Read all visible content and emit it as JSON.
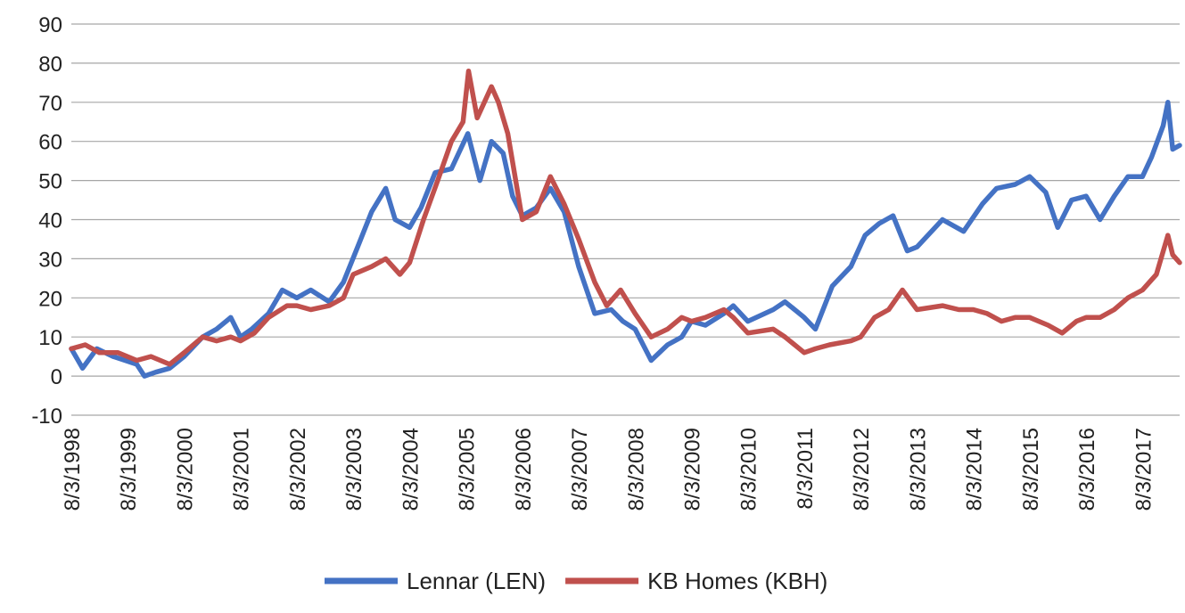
{
  "chart_data": {
    "type": "line",
    "title": "",
    "xlabel": "",
    "ylabel": "",
    "ylim": [
      -10,
      90
    ],
    "yticks": [
      -10,
      0,
      10,
      20,
      30,
      40,
      50,
      60,
      70,
      80,
      90
    ],
    "xlim": [
      "1998-08-03",
      "2018-04-01"
    ],
    "xticks": [
      "8/3/1998",
      "8/3/1999",
      "8/3/2000",
      "8/3/2001",
      "8/3/2002",
      "8/3/2003",
      "8/3/2004",
      "8/3/2005",
      "8/3/2006",
      "8/3/2007",
      "8/3/2008",
      "8/3/2009",
      "8/3/2010",
      "8/3/2011",
      "8/3/2012",
      "8/3/2013",
      "8/3/2014",
      "8/3/2015",
      "8/3/2016",
      "8/3/2017"
    ],
    "grid": true,
    "legend": "bottom",
    "series": [
      {
        "name": "Lennar (LEN)",
        "color": "#4472C4",
        "points": [
          [
            "1998-08-03",
            7
          ],
          [
            "1998-10-15",
            2
          ],
          [
            "1999-01-15",
            7
          ],
          [
            "1999-05-01",
            5
          ],
          [
            "1999-10-01",
            3
          ],
          [
            "1999-11-20",
            0
          ],
          [
            "2000-02-01",
            1
          ],
          [
            "2000-05-01",
            2
          ],
          [
            "2000-08-03",
            5
          ],
          [
            "2000-12-01",
            10
          ],
          [
            "2001-03-01",
            12
          ],
          [
            "2001-06-01",
            15
          ],
          [
            "2001-08-03",
            10
          ],
          [
            "2001-10-15",
            12
          ],
          [
            "2002-02-01",
            16
          ],
          [
            "2002-05-01",
            22
          ],
          [
            "2002-08-03",
            20
          ],
          [
            "2002-11-01",
            22
          ],
          [
            "2003-03-01",
            19
          ],
          [
            "2003-06-01",
            24
          ],
          [
            "2003-09-01",
            33
          ],
          [
            "2003-12-01",
            42
          ],
          [
            "2004-03-01",
            48
          ],
          [
            "2004-05-01",
            40
          ],
          [
            "2004-08-03",
            38
          ],
          [
            "2004-10-15",
            43
          ],
          [
            "2005-01-15",
            52
          ],
          [
            "2005-05-01",
            53
          ],
          [
            "2005-08-15",
            62
          ],
          [
            "2005-11-01",
            50
          ],
          [
            "2006-01-15",
            60
          ],
          [
            "2006-04-01",
            57
          ],
          [
            "2006-06-01",
            46
          ],
          [
            "2006-08-03",
            41
          ],
          [
            "2006-11-01",
            43
          ],
          [
            "2007-02-01",
            48
          ],
          [
            "2007-05-01",
            42
          ],
          [
            "2007-08-03",
            28
          ],
          [
            "2007-11-15",
            16
          ],
          [
            "2008-03-01",
            17
          ],
          [
            "2008-05-15",
            14
          ],
          [
            "2008-08-03",
            12
          ],
          [
            "2008-11-15",
            4
          ],
          [
            "2009-03-01",
            8
          ],
          [
            "2009-06-01",
            10
          ],
          [
            "2009-08-03",
            14
          ],
          [
            "2009-11-01",
            13
          ],
          [
            "2010-03-01",
            16
          ],
          [
            "2010-05-01",
            18
          ],
          [
            "2010-08-03",
            14
          ],
          [
            "2011-01-15",
            17
          ],
          [
            "2011-04-01",
            19
          ],
          [
            "2011-08-03",
            15
          ],
          [
            "2011-10-15",
            12
          ],
          [
            "2012-02-01",
            23
          ],
          [
            "2012-06-01",
            28
          ],
          [
            "2012-09-01",
            36
          ],
          [
            "2012-12-01",
            39
          ],
          [
            "2013-03-01",
            41
          ],
          [
            "2013-06-01",
            32
          ],
          [
            "2013-08-03",
            33
          ],
          [
            "2014-01-15",
            40
          ],
          [
            "2014-06-01",
            37
          ],
          [
            "2014-10-01",
            44
          ],
          [
            "2015-01-01",
            48
          ],
          [
            "2015-05-01",
            49
          ],
          [
            "2015-08-03",
            51
          ],
          [
            "2015-11-15",
            47
          ],
          [
            "2016-02-01",
            38
          ],
          [
            "2016-05-01",
            45
          ],
          [
            "2016-08-03",
            46
          ],
          [
            "2016-11-01",
            40
          ],
          [
            "2017-02-01",
            46
          ],
          [
            "2017-05-01",
            51
          ],
          [
            "2017-08-03",
            51
          ],
          [
            "2017-10-01",
            56
          ],
          [
            "2017-12-15",
            64
          ],
          [
            "2018-01-15",
            70
          ],
          [
            "2018-02-15",
            58
          ],
          [
            "2018-04-01",
            59
          ]
        ]
      },
      {
        "name": "KB Homes (KBH)",
        "color": "#C0504D",
        "points": [
          [
            "1998-08-03",
            7
          ],
          [
            "1998-11-01",
            8
          ],
          [
            "1999-02-01",
            6
          ],
          [
            "1999-06-01",
            6
          ],
          [
            "1999-10-01",
            4
          ],
          [
            "2000-01-01",
            5
          ],
          [
            "2000-05-01",
            3
          ],
          [
            "2000-08-03",
            6
          ],
          [
            "2000-12-01",
            10
          ],
          [
            "2001-03-01",
            9
          ],
          [
            "2001-06-01",
            10
          ],
          [
            "2001-08-03",
            9
          ],
          [
            "2001-11-01",
            11
          ],
          [
            "2002-02-01",
            15
          ],
          [
            "2002-06-01",
            18
          ],
          [
            "2002-08-03",
            18
          ],
          [
            "2002-11-01",
            17
          ],
          [
            "2003-03-01",
            18
          ],
          [
            "2003-06-01",
            20
          ],
          [
            "2003-08-03",
            26
          ],
          [
            "2003-12-01",
            28
          ],
          [
            "2004-03-01",
            30
          ],
          [
            "2004-06-01",
            26
          ],
          [
            "2004-08-03",
            29
          ],
          [
            "2004-11-01",
            40
          ],
          [
            "2005-02-01",
            50
          ],
          [
            "2005-05-01",
            60
          ],
          [
            "2005-07-15",
            65
          ],
          [
            "2005-08-20",
            78
          ],
          [
            "2005-10-15",
            66
          ],
          [
            "2006-01-15",
            74
          ],
          [
            "2006-03-01",
            70
          ],
          [
            "2006-05-01",
            62
          ],
          [
            "2006-08-03",
            40
          ],
          [
            "2006-11-01",
            42
          ],
          [
            "2007-02-01",
            51
          ],
          [
            "2007-05-01",
            44
          ],
          [
            "2007-08-03",
            35
          ],
          [
            "2007-11-15",
            24
          ],
          [
            "2008-02-01",
            18
          ],
          [
            "2008-05-01",
            22
          ],
          [
            "2008-08-03",
            16
          ],
          [
            "2008-11-15",
            10
          ],
          [
            "2009-03-01",
            12
          ],
          [
            "2009-06-01",
            15
          ],
          [
            "2009-08-03",
            14
          ],
          [
            "2009-11-01",
            15
          ],
          [
            "2010-03-01",
            17
          ],
          [
            "2010-05-01",
            15
          ],
          [
            "2010-08-03",
            11
          ],
          [
            "2011-01-15",
            12
          ],
          [
            "2011-04-01",
            10
          ],
          [
            "2011-08-03",
            6
          ],
          [
            "2011-10-15",
            7
          ],
          [
            "2012-01-15",
            8
          ],
          [
            "2012-06-01",
            9
          ],
          [
            "2012-08-03",
            10
          ],
          [
            "2012-11-01",
            15
          ],
          [
            "2013-02-01",
            17
          ],
          [
            "2013-05-01",
            22
          ],
          [
            "2013-08-03",
            17
          ],
          [
            "2014-01-15",
            18
          ],
          [
            "2014-05-01",
            17
          ],
          [
            "2014-08-03",
            17
          ],
          [
            "2014-11-01",
            16
          ],
          [
            "2015-02-01",
            14
          ],
          [
            "2015-05-01",
            15
          ],
          [
            "2015-08-03",
            15
          ],
          [
            "2015-12-01",
            13
          ],
          [
            "2016-03-01",
            11
          ],
          [
            "2016-06-01",
            14
          ],
          [
            "2016-08-03",
            15
          ],
          [
            "2016-11-01",
            15
          ],
          [
            "2017-02-01",
            17
          ],
          [
            "2017-05-01",
            20
          ],
          [
            "2017-08-03",
            22
          ],
          [
            "2017-11-01",
            26
          ],
          [
            "2018-01-15",
            36
          ],
          [
            "2018-02-15",
            31
          ],
          [
            "2018-04-01",
            29
          ]
        ]
      }
    ]
  }
}
